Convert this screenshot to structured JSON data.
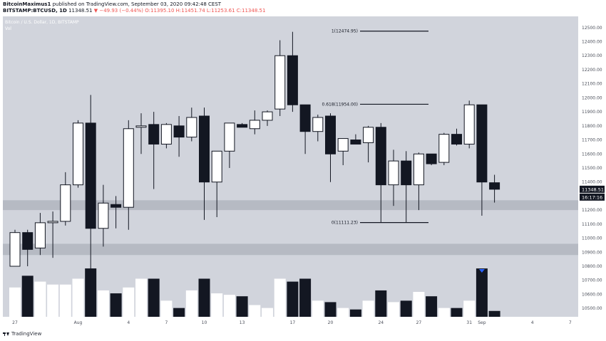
{
  "header": {
    "user": "BitcoinMaximus1",
    "published": " published on TradingView.com, September 03, 2020 09:42:48 CEST",
    "symbol": "BITSTAMP:BTCUSD, 1D",
    "last": " 11348.51 ",
    "change": "▼ −49.93 (−0.44%) O:11395.10 H:11451.74 L:11253.61 C:11348.51"
  },
  "pane": {
    "title": "Bitcoin / U.S. Dollar, 1D, BITSTAMP",
    "vol_label": "Vol"
  },
  "footer": {
    "brand": "TradingView"
  },
  "colors": {
    "plot_bg": "#d1d4dc",
    "up": "#ffffff",
    "down": "#131722",
    "zone": "#b2b5be",
    "marker": "#2962ff",
    "axis_bg": "#ffffff"
  },
  "chart_data": {
    "type": "candlestick",
    "symbol": "BTCUSD",
    "exchange": "BITSTAMP",
    "interval": "1D",
    "price_axis": {
      "ylim": [
        10440,
        12580
      ],
      "ticks": [
        "12500.00",
        "12400.00",
        "12300.00",
        "12200.00",
        "12100.00",
        "12000.00",
        "11900.00",
        "11800.00",
        "11700.00",
        "11600.00",
        "11500.00",
        "11400.00",
        "11300.00",
        "11200.00",
        "11100.00",
        "11000.00",
        "10900.00",
        "10800.00",
        "10700.00",
        "10600.00",
        "10500.00"
      ],
      "last_price_label": "11348.51",
      "countdown_label": "16:17:16"
    },
    "time_axis": {
      "ticks": [
        {
          "label": "27",
          "index": 0
        },
        {
          "label": "Aug",
          "index": 5
        },
        {
          "label": "4",
          "index": 9
        },
        {
          "label": "7",
          "index": 12
        },
        {
          "label": "10",
          "index": 15
        },
        {
          "label": "13",
          "index": 18
        },
        {
          "label": "17",
          "index": 22
        },
        {
          "label": "20",
          "index": 25
        },
        {
          "label": "24",
          "index": 29
        },
        {
          "label": "27",
          "index": 32
        },
        {
          "label": "31",
          "index": 36
        },
        {
          "label": "Sep",
          "index": 37
        },
        {
          "label": "4",
          "index": 41
        },
        {
          "label": "7",
          "index": 44
        }
      ]
    },
    "candles": [
      {
        "o": 10800,
        "h": 11060,
        "l": 10800,
        "c": 11040
      },
      {
        "o": 11040,
        "h": 11060,
        "l": 10800,
        "c": 10920
      },
      {
        "o": 10930,
        "h": 11180,
        "l": 10880,
        "c": 11110
      },
      {
        "o": 11110,
        "h": 11190,
        "l": 10860,
        "c": 11120
      },
      {
        "o": 11120,
        "h": 11470,
        "l": 11090,
        "c": 11380
      },
      {
        "o": 11380,
        "h": 11840,
        "l": 11360,
        "c": 11820
      },
      {
        "o": 11820,
        "h": 12020,
        "l": 10570,
        "c": 11070
      },
      {
        "o": 11070,
        "h": 11380,
        "l": 10940,
        "c": 11250
      },
      {
        "o": 11240,
        "h": 11300,
        "l": 11070,
        "c": 11220
      },
      {
        "o": 11220,
        "h": 11840,
        "l": 11060,
        "c": 11780
      },
      {
        "o": 11790,
        "h": 11890,
        "l": 11600,
        "c": 11800
      },
      {
        "o": 11810,
        "h": 11900,
        "l": 11350,
        "c": 11670
      },
      {
        "o": 11670,
        "h": 11820,
        "l": 11640,
        "c": 11810
      },
      {
        "o": 11800,
        "h": 11870,
        "l": 11580,
        "c": 11720
      },
      {
        "o": 11720,
        "h": 11930,
        "l": 11690,
        "c": 11860
      },
      {
        "o": 11870,
        "h": 11930,
        "l": 11130,
        "c": 11400
      },
      {
        "o": 11400,
        "h": 11620,
        "l": 11150,
        "c": 11620
      },
      {
        "o": 11620,
        "h": 11810,
        "l": 11500,
        "c": 11820
      },
      {
        "o": 11810,
        "h": 11820,
        "l": 11790,
        "c": 11790
      },
      {
        "o": 11780,
        "h": 11910,
        "l": 11740,
        "c": 11840
      },
      {
        "o": 11840,
        "h": 11910,
        "l": 11800,
        "c": 11900
      },
      {
        "o": 11920,
        "h": 12410,
        "l": 11870,
        "c": 12300
      },
      {
        "o": 12300,
        "h": 12470,
        "l": 11900,
        "c": 11950
      },
      {
        "o": 11950,
        "h": 11950,
        "l": 11600,
        "c": 11760
      },
      {
        "o": 11760,
        "h": 11880,
        "l": 11690,
        "c": 11860
      },
      {
        "o": 11870,
        "h": 11890,
        "l": 11400,
        "c": 11600
      },
      {
        "o": 11620,
        "h": 11700,
        "l": 11520,
        "c": 11710
      },
      {
        "o": 11700,
        "h": 11740,
        "l": 11680,
        "c": 11670
      },
      {
        "o": 11680,
        "h": 11800,
        "l": 11540,
        "c": 11790
      },
      {
        "o": 11790,
        "h": 11820,
        "l": 11110,
        "c": 11380
      },
      {
        "o": 11380,
        "h": 11630,
        "l": 11230,
        "c": 11550
      },
      {
        "o": 11550,
        "h": 11620,
        "l": 11110,
        "c": 11380
      },
      {
        "o": 11380,
        "h": 11610,
        "l": 11200,
        "c": 11600
      },
      {
        "o": 11600,
        "h": 11600,
        "l": 11520,
        "c": 11530
      },
      {
        "o": 11540,
        "h": 11750,
        "l": 11520,
        "c": 11740
      },
      {
        "o": 11740,
        "h": 11780,
        "l": 11660,
        "c": 11670
      },
      {
        "o": 11670,
        "h": 11980,
        "l": 11640,
        "c": 11950
      },
      {
        "o": 11950,
        "h": 11950,
        "l": 11160,
        "c": 11400
      },
      {
        "o": 11395.1,
        "h": 11451.74,
        "l": 11253.61,
        "c": 11348.51
      }
    ],
    "volume": [
      1.0,
      1.4,
      1.2,
      1.1,
      1.1,
      1.3,
      1.65,
      0.9,
      0.8,
      1.0,
      1.3,
      1.3,
      0.55,
      0.3,
      0.9,
      1.3,
      0.8,
      0.75,
      0.7,
      0.4,
      0.3,
      1.3,
      1.2,
      1.3,
      0.55,
      0.5,
      0.3,
      0.25,
      0.55,
      0.9,
      0.5,
      0.55,
      0.85,
      0.7,
      0.3,
      0.3,
      0.55,
      1.65,
      0.2
    ],
    "annotations": {
      "fib_levels": [
        {
          "label": "1(12474.95)",
          "price": 12474.95
        },
        {
          "label": "0.618(11954.00)",
          "price": 11954.0
        },
        {
          "label": "0(11111.23)",
          "price": 11111.23
        }
      ],
      "zones": [
        {
          "from": 11200,
          "to": 11270
        },
        {
          "from": 10880,
          "to": 10960
        }
      ],
      "marker": {
        "type": "down-arrow",
        "at_candle": 37
      }
    }
  }
}
